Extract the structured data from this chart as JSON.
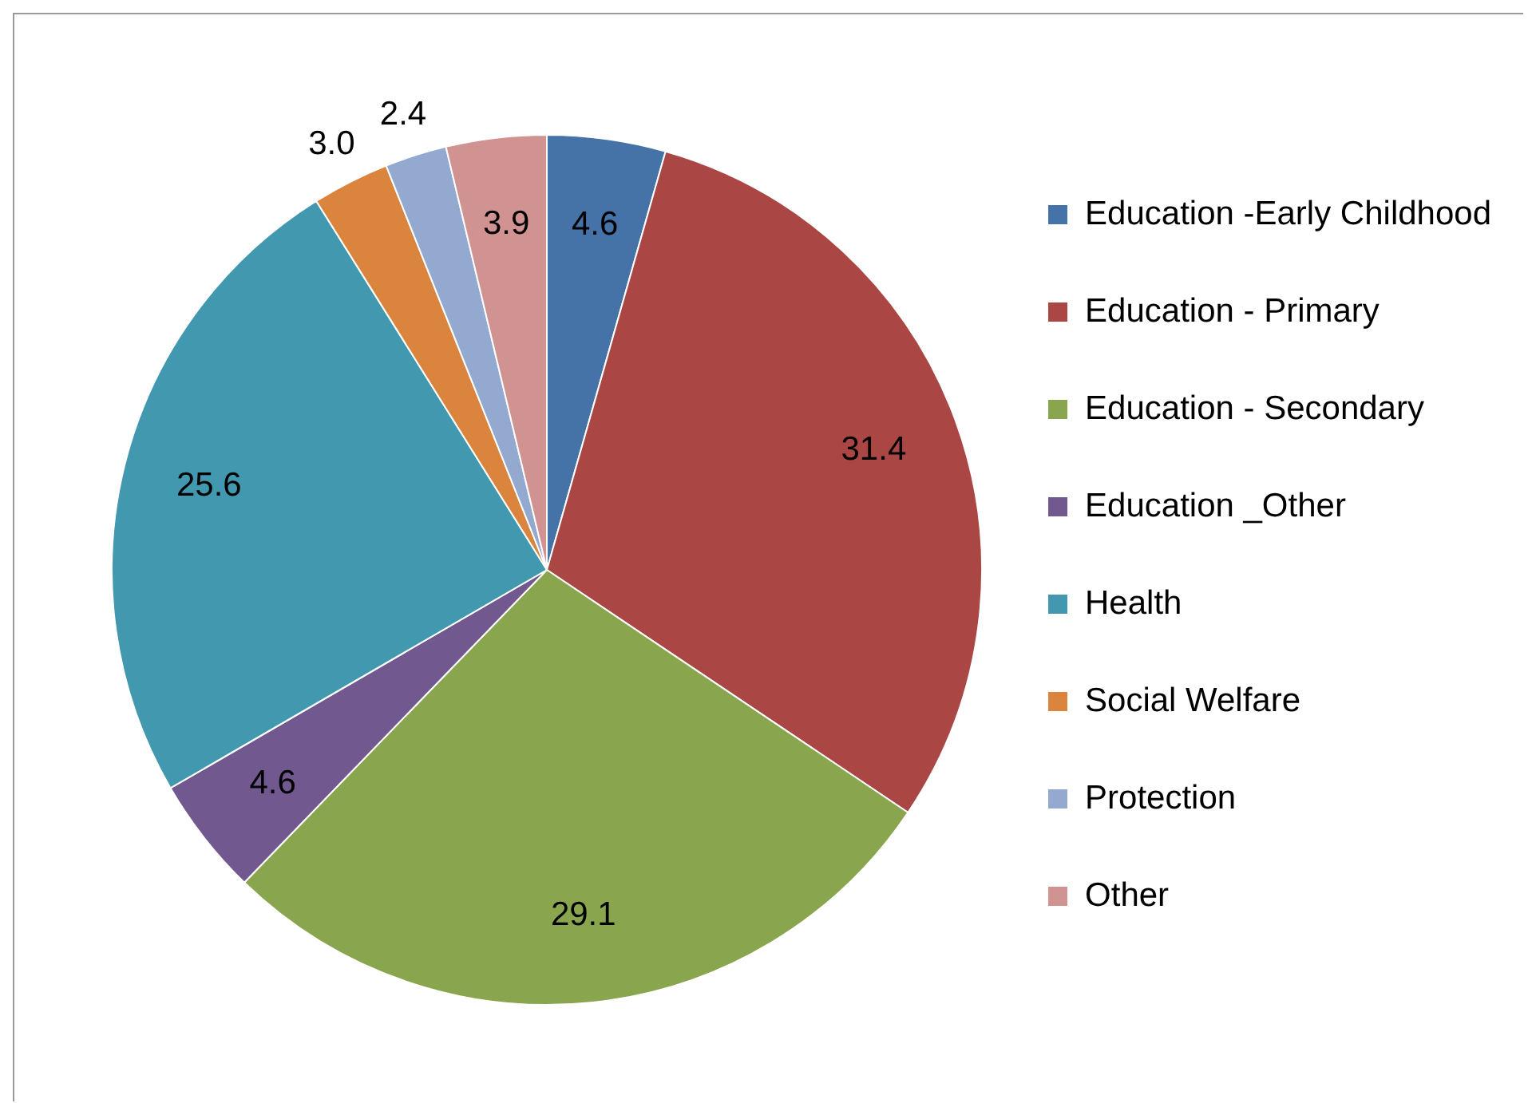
{
  "chart_data": {
    "type": "pie",
    "categories": [
      "Education -Early Childhood",
      "Education - Primary",
      "Education - Secondary",
      "Education _Other",
      "Health",
      "Social Welfare",
      "Protection",
      "Other"
    ],
    "values": [
      4.6,
      31.4,
      29.1,
      4.6,
      25.6,
      3.0,
      2.4,
      3.9
    ],
    "value_labels": [
      "4.6",
      "31.4",
      "29.1",
      "4.6",
      "25.6",
      "3.0",
      "2.4",
      "3.9"
    ],
    "colors": [
      "#4572a7",
      "#aa4643",
      "#89a54e",
      "#71588f",
      "#4198af",
      "#db843d",
      "#93a9cf",
      "#d19392"
    ],
    "legend": "right"
  }
}
